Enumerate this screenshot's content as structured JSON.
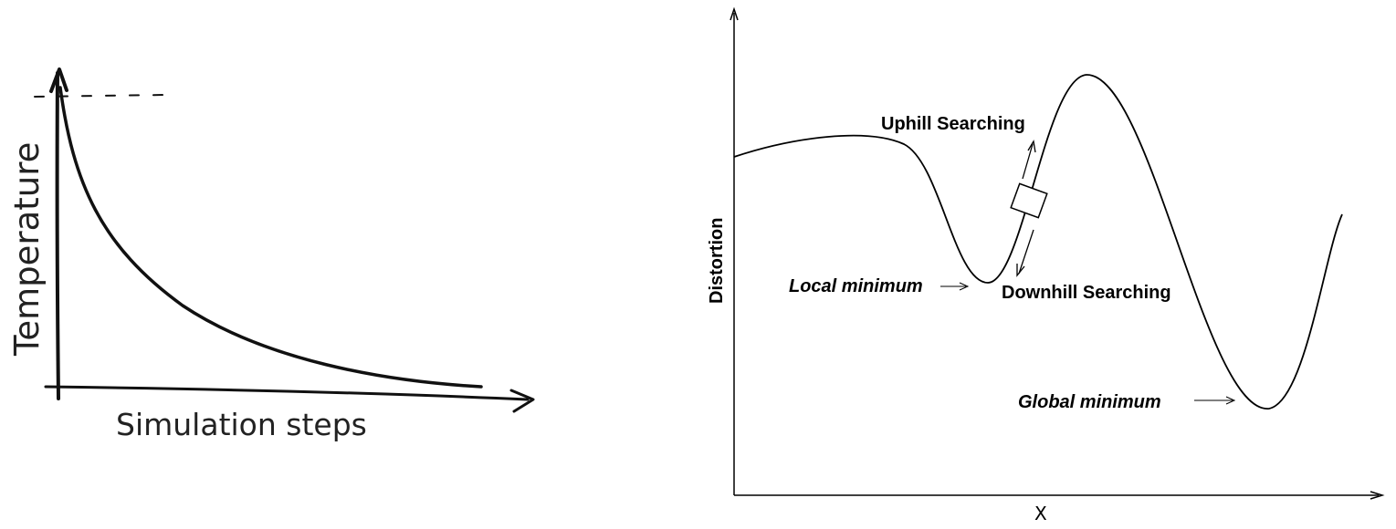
{
  "left_panel": {
    "y_axis_label": "Temperature",
    "x_axis_label": "Simulation steps"
  },
  "right_panel": {
    "y_axis_label": "Distortion",
    "x_axis_label": "X",
    "annotations": {
      "uphill": "Uphill Searching",
      "downhill": "Downhill Searching",
      "local_min": "Local minimum",
      "global_min": "Global minimum"
    }
  }
}
